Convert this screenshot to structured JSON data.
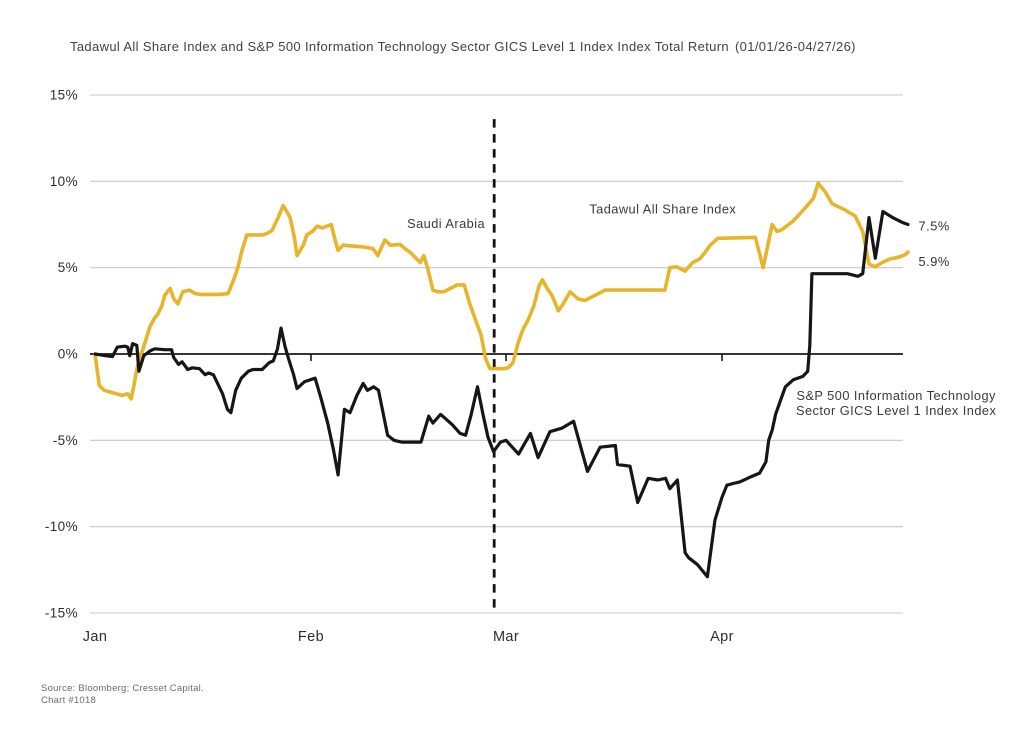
{
  "header": {
    "title": "Tadawul All Share Index and S&P 500 Information Technology Sector GICS Level 1 Index Index Total Return",
    "date_range": "(01/01/26-04/27/26)"
  },
  "footer": {
    "source_line1": "Source: Bloomberg; Cresset Capital.",
    "source_line2": "Chart #1018"
  },
  "chart_data": {
    "type": "line",
    "title": "Tadawul All Share Index and S&P 500 Information Technology Sector GICS Level 1 Index Index Total Return",
    "date_range": "(01/01/26-04/27/26)",
    "y_unit": "%",
    "ylim": [
      -15,
      15
    ],
    "y_ticks": [
      15,
      10,
      5,
      0,
      -5,
      -10,
      -15
    ],
    "x_unit": "days since 01/01/26",
    "xlim": [
      0,
      117
    ],
    "x_ticks": [
      {
        "label": "Jan",
        "day": 0
      },
      {
        "label": "Feb",
        "day": 31
      },
      {
        "label": "Mar",
        "day": 59
      },
      {
        "label": "Apr",
        "day": 90
      }
    ],
    "zero_axis_tick_days": [
      31,
      59,
      90
    ],
    "dashed_vline": {
      "day": 57.3,
      "top_value": 13.6,
      "bottom_value": -15
    },
    "grid": true,
    "legend_position": "inline-annotations",
    "colors": {
      "tadawul": "#E8B42A",
      "sp500_it": "#161616",
      "gridline": "#c7c7c7",
      "zero_line": "#1a1a1a",
      "text": "#2e2e2e"
    },
    "series": [
      {
        "id": "tadawul",
        "name": "Tadawul All Share Index",
        "color_key": "tadawul",
        "end_value_label": "5.9%",
        "points": [
          [
            0,
            0
          ],
          [
            0.6,
            -1.8
          ],
          [
            1.3,
            -2.1
          ],
          [
            2.2,
            -2.2
          ],
          [
            3,
            -2.3
          ],
          [
            3.9,
            -2.4
          ],
          [
            4.7,
            -2.3
          ],
          [
            5.2,
            -2.6
          ],
          [
            5.6,
            -1.8
          ],
          [
            6,
            -0.9
          ],
          [
            6.5,
            -0.1
          ],
          [
            6.9,
            0.3
          ],
          [
            7.9,
            1.6
          ],
          [
            8.6,
            2.1
          ],
          [
            9,
            2.3
          ],
          [
            9.6,
            2.8
          ],
          [
            10,
            3.4
          ],
          [
            10.8,
            3.8
          ],
          [
            11.3,
            3.2
          ],
          [
            11.9,
            2.9
          ],
          [
            12.6,
            3.6
          ],
          [
            13.6,
            3.7
          ],
          [
            14.4,
            3.5
          ],
          [
            15.1,
            3.45
          ],
          [
            17.9,
            3.45
          ],
          [
            19.1,
            3.5
          ],
          [
            20,
            4.4
          ],
          [
            20.5,
            5.0
          ],
          [
            21.1,
            6.0
          ],
          [
            21.8,
            6.9
          ],
          [
            24.1,
            6.9
          ],
          [
            24.8,
            7.0
          ],
          [
            25.4,
            7.15
          ],
          [
            26.3,
            7.9
          ],
          [
            27,
            8.6
          ],
          [
            27.6,
            8.2
          ],
          [
            28,
            7.9
          ],
          [
            28.6,
            6.8
          ],
          [
            29,
            5.7
          ],
          [
            29.9,
            6.3
          ],
          [
            30.4,
            6.9
          ],
          [
            31.2,
            7.1
          ],
          [
            31.9,
            7.4
          ],
          [
            32.6,
            7.3
          ],
          [
            33.9,
            7.5
          ],
          [
            34.6,
            6.4
          ],
          [
            34.9,
            6.0
          ],
          [
            35.6,
            6.3
          ],
          [
            37,
            6.25
          ],
          [
            38.5,
            6.2
          ],
          [
            39.9,
            6.1
          ],
          [
            40.6,
            5.7
          ],
          [
            41.6,
            6.6
          ],
          [
            42.4,
            6.3
          ],
          [
            43.8,
            6.35
          ],
          [
            44.5,
            6.1
          ],
          [
            45.2,
            5.9
          ],
          [
            45.7,
            5.7
          ],
          [
            46.7,
            5.3
          ],
          [
            47.2,
            5.7
          ],
          [
            47.8,
            4.9
          ],
          [
            48.5,
            3.7
          ],
          [
            49.2,
            3.6
          ],
          [
            50.1,
            3.6
          ],
          [
            51,
            3.8
          ],
          [
            52,
            4.0
          ],
          [
            53,
            4.0
          ],
          [
            53.8,
            2.9
          ],
          [
            54.6,
            2.0
          ],
          [
            55.4,
            1.1
          ],
          [
            56.1,
            -0.3
          ],
          [
            56.7,
            -0.85
          ],
          [
            58.6,
            -0.85
          ],
          [
            59.3,
            -0.8
          ],
          [
            60,
            -0.5
          ],
          [
            60.7,
            0.6
          ],
          [
            61.4,
            1.4
          ],
          [
            62.2,
            2.0
          ],
          [
            63,
            2.8
          ],
          [
            63.7,
            3.9
          ],
          [
            64.2,
            4.3
          ],
          [
            64.9,
            3.8
          ],
          [
            65.6,
            3.4
          ],
          [
            66.5,
            2.5
          ],
          [
            67.2,
            2.9
          ],
          [
            68.2,
            3.6
          ],
          [
            69.3,
            3.2
          ],
          [
            70.3,
            3.1
          ],
          [
            71.8,
            3.4
          ],
          [
            73.2,
            3.7
          ],
          [
            81.8,
            3.7
          ],
          [
            82.5,
            5.0
          ],
          [
            83.5,
            5.05
          ],
          [
            84.7,
            4.8
          ],
          [
            85.8,
            5.3
          ],
          [
            86.8,
            5.5
          ],
          [
            87.6,
            5.9
          ],
          [
            88.3,
            6.3
          ],
          [
            89.4,
            6.7
          ],
          [
            94.8,
            6.75
          ],
          [
            95.9,
            5.0
          ],
          [
            97.2,
            7.5
          ],
          [
            97.9,
            7.1
          ],
          [
            98.6,
            7.2
          ],
          [
            100.2,
            7.7
          ],
          [
            101.6,
            8.3
          ],
          [
            103.1,
            9.0
          ],
          [
            103.8,
            9.9
          ],
          [
            104.8,
            9.4
          ],
          [
            105.8,
            8.7
          ],
          [
            107.4,
            8.4
          ],
          [
            109.1,
            8.0
          ],
          [
            110.2,
            7.1
          ],
          [
            111.1,
            5.2
          ],
          [
            112,
            5.05
          ],
          [
            113,
            5.3
          ],
          [
            114.1,
            5.5
          ],
          [
            115.3,
            5.6
          ],
          [
            116.3,
            5.75
          ],
          [
            116.7,
            5.9
          ]
        ]
      },
      {
        "id": "sp500_it",
        "name": "S&P 500 Information Technology Sector GICS Level 1 Index Index",
        "color_key": "sp500_it",
        "end_value_label": "7.5%",
        "points": [
          [
            0,
            0
          ],
          [
            1.5,
            -0.1
          ],
          [
            2.5,
            -0.15
          ],
          [
            3.2,
            0.4
          ],
          [
            4.3,
            0.45
          ],
          [
            4.7,
            0.4
          ],
          [
            5,
            -0.1
          ],
          [
            5.4,
            0.6
          ],
          [
            6,
            0.5
          ],
          [
            6.3,
            -1.0
          ],
          [
            7,
            -0.1
          ],
          [
            8,
            0.2
          ],
          [
            8.6,
            0.3
          ],
          [
            10,
            0.25
          ],
          [
            11,
            0.25
          ],
          [
            11.3,
            -0.2
          ],
          [
            12,
            -0.6
          ],
          [
            12.5,
            -0.45
          ],
          [
            13.3,
            -0.9
          ],
          [
            14,
            -0.8
          ],
          [
            15,
            -0.85
          ],
          [
            15.8,
            -1.2
          ],
          [
            16.3,
            -1.1
          ],
          [
            17,
            -1.2
          ],
          [
            18.3,
            -2.3
          ],
          [
            19,
            -3.2
          ],
          [
            19.5,
            -3.4
          ],
          [
            20.2,
            -2.1
          ],
          [
            21,
            -1.4
          ],
          [
            22,
            -1.0
          ],
          [
            22.7,
            -0.9
          ],
          [
            24,
            -0.9
          ],
          [
            25,
            -0.5
          ],
          [
            25.6,
            -0.4
          ],
          [
            26.2,
            0.3
          ],
          [
            26.7,
            1.5
          ],
          [
            27.3,
            0.4
          ],
          [
            27.8,
            -0.3
          ],
          [
            28.5,
            -1.2
          ],
          [
            29,
            -2.0
          ],
          [
            30.1,
            -1.6
          ],
          [
            31.6,
            -1.4
          ],
          [
            32.4,
            -2.5
          ],
          [
            33.4,
            -4.0
          ],
          [
            34.2,
            -5.5
          ],
          [
            34.9,
            -7.0
          ],
          [
            35.8,
            -3.2
          ],
          [
            36.6,
            -3.4
          ],
          [
            37.6,
            -2.4
          ],
          [
            38.5,
            -1.7
          ],
          [
            39.1,
            -2.1
          ],
          [
            40,
            -1.9
          ],
          [
            40.7,
            -2.1
          ],
          [
            41.4,
            -3.5
          ],
          [
            42,
            -4.7
          ],
          [
            42.9,
            -5.0
          ],
          [
            44,
            -5.1
          ],
          [
            46.8,
            -5.1
          ],
          [
            47.9,
            -3.6
          ],
          [
            48.5,
            -4.0
          ],
          [
            49.6,
            -3.5
          ],
          [
            50.2,
            -3.7
          ],
          [
            51.3,
            -4.1
          ],
          [
            52.4,
            -4.6
          ],
          [
            53.2,
            -4.7
          ],
          [
            54,
            -3.5
          ],
          [
            54.9,
            -1.9
          ],
          [
            55.7,
            -3.5
          ],
          [
            56.4,
            -4.8
          ],
          [
            57.2,
            -5.65
          ],
          [
            58.2,
            -5.1
          ],
          [
            59,
            -5.0
          ],
          [
            59.9,
            -5.4
          ],
          [
            60.8,
            -5.8
          ],
          [
            62.5,
            -4.6
          ],
          [
            63.6,
            -6.0
          ],
          [
            65.3,
            -4.5
          ],
          [
            67,
            -4.3
          ],
          [
            68.7,
            -3.9
          ],
          [
            70.7,
            -6.8
          ],
          [
            72.5,
            -5.4
          ],
          [
            74.7,
            -5.3
          ],
          [
            75,
            -6.4
          ],
          [
            76.8,
            -6.5
          ],
          [
            77.9,
            -8.6
          ],
          [
            79.4,
            -7.2
          ],
          [
            80.8,
            -7.3
          ],
          [
            81.9,
            -7.2
          ],
          [
            82.5,
            -7.8
          ],
          [
            83.6,
            -7.3
          ],
          [
            84.7,
            -11.5
          ],
          [
            85.2,
            -11.8
          ],
          [
            86.5,
            -12.2
          ],
          [
            87.9,
            -12.9
          ],
          [
            89,
            -9.6
          ],
          [
            90,
            -8.3
          ],
          [
            90.7,
            -7.6
          ],
          [
            91.6,
            -7.5
          ],
          [
            92.6,
            -7.4
          ],
          [
            94.2,
            -7.1
          ],
          [
            95.4,
            -6.9
          ],
          [
            96.3,
            -6.25
          ],
          [
            96.7,
            -5.0
          ],
          [
            97.2,
            -4.4
          ],
          [
            97.7,
            -3.5
          ],
          [
            98.3,
            -2.8
          ],
          [
            99.1,
            -1.9
          ],
          [
            100.2,
            -1.5
          ],
          [
            101.6,
            -1.3
          ],
          [
            102.3,
            -1.0
          ],
          [
            102.6,
            0.5
          ],
          [
            102.9,
            4.65
          ],
          [
            108,
            4.65
          ],
          [
            109.5,
            4.5
          ],
          [
            110.2,
            4.65
          ],
          [
            111.1,
            7.9
          ],
          [
            112,
            5.55
          ],
          [
            113.1,
            8.25
          ],
          [
            114.5,
            7.9
          ],
          [
            116,
            7.6
          ],
          [
            116.7,
            7.5
          ]
        ]
      }
    ],
    "annotations": [
      {
        "id": "saudi-arabia-label",
        "text_lines": [
          "Saudi Arabia"
        ],
        "day": 50.4,
        "value": 7.3
      },
      {
        "id": "tadawul-label",
        "text_lines": [
          "Tadawul All Share Index"
        ],
        "day": 81.5,
        "value": 8.15
      },
      {
        "id": "sp500-it-label",
        "text_lines": [
          "S&P 500 Information Technology",
          "Sector GICS Level 1 Index Index"
        ],
        "day": 115,
        "value": -2.65
      }
    ],
    "end_labels": [
      {
        "text": "7.5%",
        "day": 118.2,
        "value": 7.4,
        "series": "sp500_it"
      },
      {
        "text": "5.9%",
        "day": 118.2,
        "value": 5.35,
        "series": "tadawul"
      }
    ]
  }
}
